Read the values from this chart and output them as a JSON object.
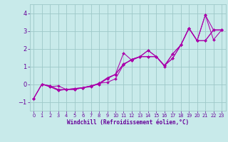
{
  "background_color": "#c8eaea",
  "grid_color": "#9ec8c8",
  "line_color": "#aa00aa",
  "marker_color": "#aa00aa",
  "xlabel": "Windchill (Refroidissement éolien,°C)",
  "xlabel_color": "#660099",
  "tick_color": "#660099",
  "xlim": [
    -0.5,
    23.5
  ],
  "ylim": [
    -1.5,
    4.5
  ],
  "yticks": [
    -1,
    0,
    1,
    2,
    3,
    4
  ],
  "xticks": [
    0,
    1,
    2,
    3,
    4,
    5,
    6,
    7,
    8,
    9,
    10,
    11,
    12,
    13,
    14,
    15,
    16,
    17,
    18,
    19,
    20,
    21,
    22,
    23
  ],
  "lines": [
    {
      "x": [
        0,
        1,
        2,
        3,
        4,
        5,
        6,
        7,
        8,
        9,
        10,
        11,
        12,
        13,
        14,
        15,
        16,
        17,
        18,
        19,
        20,
        21,
        22,
        23
      ],
      "y": [
        -0.8,
        0.0,
        -0.15,
        -0.35,
        -0.3,
        -0.3,
        -0.2,
        -0.15,
        0.05,
        0.35,
        0.55,
        1.75,
        1.35,
        1.55,
        1.9,
        1.55,
        1.05,
        1.7,
        2.2,
        3.15,
        2.45,
        3.9,
        2.5,
        3.05
      ]
    },
    {
      "x": [
        0,
        1,
        2,
        3,
        4,
        5,
        6,
        7,
        8,
        9,
        10,
        11,
        12,
        13,
        14,
        15,
        16,
        17,
        18,
        19,
        20,
        21,
        22,
        23
      ],
      "y": [
        -0.8,
        0.0,
        -0.1,
        -0.3,
        -0.3,
        -0.25,
        -0.2,
        -0.1,
        0.0,
        0.3,
        0.55,
        1.1,
        1.4,
        1.55,
        1.55,
        1.55,
        1.05,
        1.45,
        2.2,
        3.15,
        2.45,
        2.45,
        3.05,
        3.05
      ]
    },
    {
      "x": [
        1,
        2,
        3,
        4,
        5,
        6,
        7,
        8,
        9,
        10,
        11,
        12,
        13,
        14,
        15,
        16,
        17,
        18,
        19,
        20,
        21,
        22,
        23
      ],
      "y": [
        0.0,
        -0.1,
        -0.35,
        -0.3,
        -0.3,
        -0.2,
        -0.1,
        0.0,
        0.35,
        0.55,
        1.15,
        1.35,
        1.55,
        1.55,
        1.55,
        1.0,
        1.7,
        2.2,
        3.15,
        2.45,
        2.45,
        3.05,
        3.05
      ]
    },
    {
      "x": [
        0,
        1,
        2,
        3,
        4,
        5,
        6,
        7,
        8,
        9,
        10,
        11,
        12,
        13,
        14,
        15,
        16,
        17,
        18,
        19,
        20,
        21,
        22,
        23
      ],
      "y": [
        -0.8,
        0.0,
        -0.15,
        -0.1,
        -0.3,
        -0.25,
        -0.2,
        -0.1,
        0.05,
        0.1,
        0.3,
        1.1,
        1.4,
        1.55,
        1.9,
        1.55,
        1.05,
        1.45,
        2.2,
        3.15,
        2.45,
        3.9,
        3.05,
        3.05
      ]
    }
  ]
}
